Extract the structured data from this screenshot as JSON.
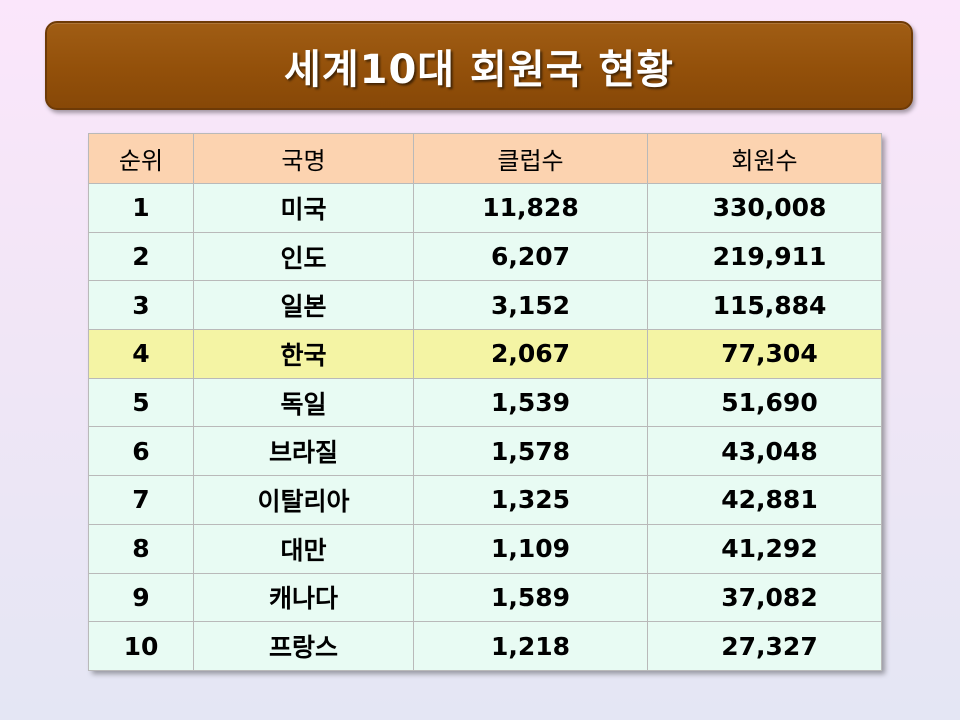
{
  "title": "세계10대 회원국 현황",
  "table": {
    "headers": [
      "순위",
      "국명",
      "클럽수",
      "회원수"
    ],
    "rows": [
      {
        "rank": "1",
        "country": "미국",
        "clubs": "11,828",
        "members": "330,008"
      },
      {
        "rank": "2",
        "country": "인도",
        "clubs": "6,207",
        "members": "219,911"
      },
      {
        "rank": "3",
        "country": "일본",
        "clubs": "3,152",
        "members": "115,884"
      },
      {
        "rank": "4",
        "country": "한국",
        "clubs": "2,067",
        "members": "77,304"
      },
      {
        "rank": "5",
        "country": "독일",
        "clubs": "1,539",
        "members": "51,690"
      },
      {
        "rank": "6",
        "country": "브라질",
        "clubs": "1,578",
        "members": "43,048"
      },
      {
        "rank": "7",
        "country": "이탈리아",
        "clubs": "1,325",
        "members": "42,881"
      },
      {
        "rank": "8",
        "country": "대만",
        "clubs": "1,109",
        "members": "41,292"
      },
      {
        "rank": "9",
        "country": "캐나다",
        "clubs": "1,589",
        "members": "37,082"
      },
      {
        "rank": "10",
        "country": "프랑스",
        "clubs": "1,218",
        "members": "27,327"
      }
    ]
  },
  "colors": {
    "banner": "#93500a",
    "header_row": "#fcd3b0",
    "body_row": "#e8fbf3",
    "highlight_row": "#f4f4a4"
  }
}
